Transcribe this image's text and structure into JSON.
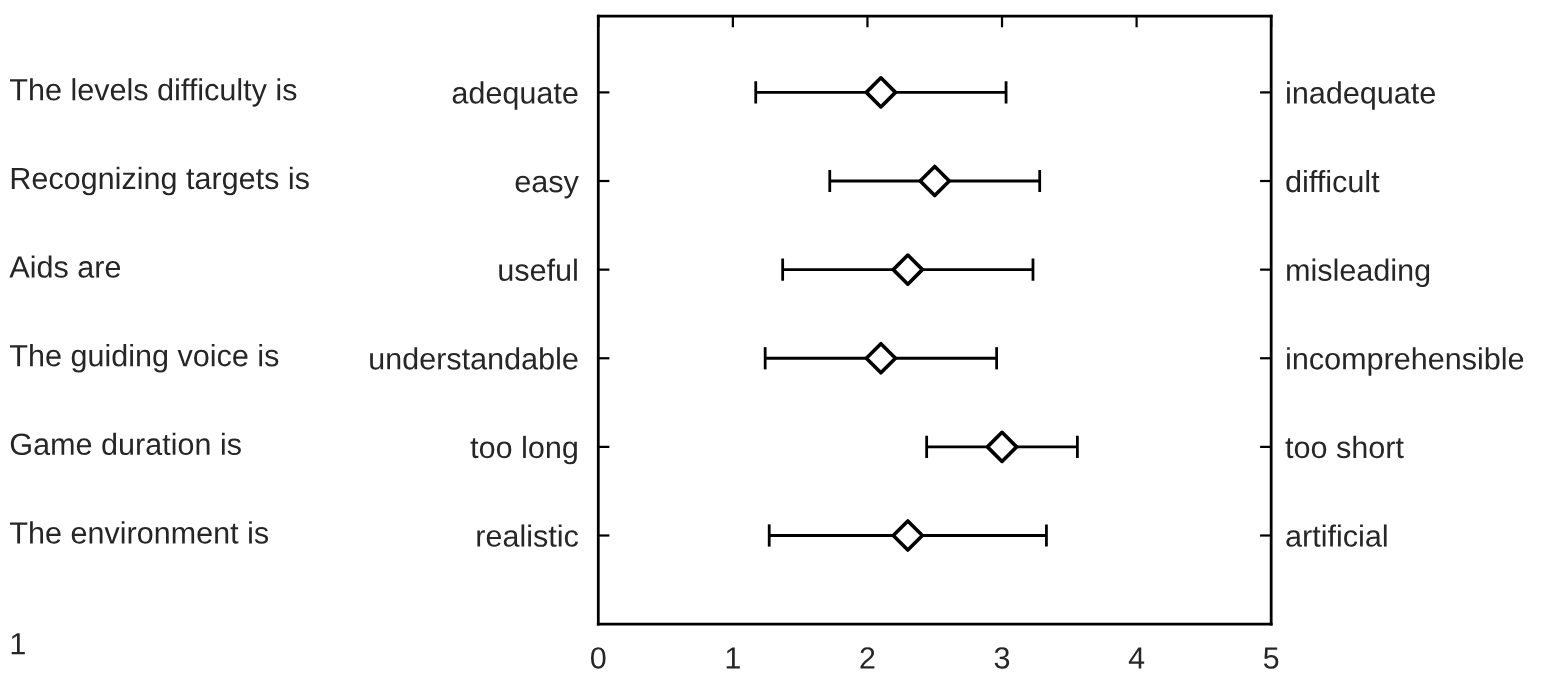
{
  "chart_data": {
    "type": "scatter",
    "orientation": "horizontal",
    "categories": [
      "adequate",
      "easy",
      "useful",
      "understandable",
      "too long",
      "realistic"
    ],
    "y2_categories": [
      "inadequate",
      "difficult",
      "misleading",
      "incomprehensible",
      "too short",
      "artificial"
    ],
    "values": [
      2.1,
      2.5,
      2.3,
      2.1,
      3.0,
      2.3
    ],
    "errors": [
      0.93,
      0.78,
      0.93,
      0.86,
      0.56,
      1.03
    ],
    "color": "#000000",
    "marker": "diamond",
    "xlim": [
      0,
      5
    ],
    "xticks": [
      0,
      1,
      2,
      3,
      4,
      5
    ],
    "annotations": [
      "The levels difficulty is",
      "Recognizing targets is",
      "Aids are",
      "The guiding voice is",
      "Game duration is",
      "The environment is",
      "1"
    ]
  }
}
